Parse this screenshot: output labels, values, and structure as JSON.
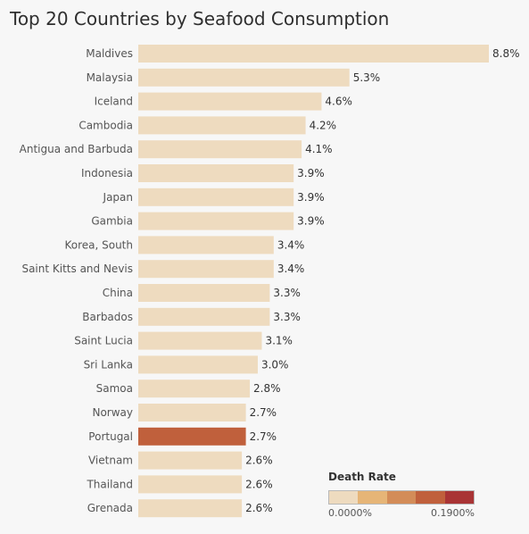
{
  "title": "Top 20 Countries by Seafood Consumption",
  "chart_data": {
    "type": "bar",
    "orientation": "horizontal",
    "title": "Top 20 Countries by Seafood Consumption",
    "xlabel": "",
    "ylabel": "",
    "xlim": [
      0,
      8.8
    ],
    "grid": false,
    "categories": [
      "Maldives",
      "Malaysia",
      "Iceland",
      "Cambodia",
      "Antigua and Barbuda",
      "Indonesia",
      "Japan",
      "Gambia",
      "Korea, South",
      "Saint Kitts and Nevis",
      "China",
      "Barbados",
      "Saint Lucia",
      "Sri Lanka",
      "Samoa",
      "Norway",
      "Portugal",
      "Vietnam",
      "Thailand",
      "Grenada"
    ],
    "values": [
      8.8,
      5.3,
      4.6,
      4.2,
      4.1,
      3.9,
      3.9,
      3.9,
      3.4,
      3.4,
      3.3,
      3.3,
      3.1,
      3.0,
      2.8,
      2.7,
      2.7,
      2.6,
      2.6,
      2.6
    ],
    "value_labels": [
      "8.8%",
      "5.3%",
      "4.6%",
      "4.2%",
      "4.1%",
      "3.9%",
      "3.9%",
      "3.9%",
      "3.4%",
      "3.4%",
      "3.3%",
      "3.3%",
      "3.1%",
      "3.0%",
      "2.8%",
      "2.7%",
      "2.7%",
      "2.6%",
      "2.6%",
      "2.6%"
    ],
    "bar_colors": [
      "#eedbbf",
      "#eedbbf",
      "#eedbbf",
      "#eedbbf",
      "#eedbbf",
      "#eedbbf",
      "#eedbbf",
      "#eedbbf",
      "#eedbbf",
      "#eedbbf",
      "#eedbbf",
      "#eedbbf",
      "#eedbbf",
      "#eedbbf",
      "#eedbbf",
      "#eedbbf",
      "#c0603c",
      "#eedbbf",
      "#eedbbf",
      "#eedbbf"
    ],
    "legend": {
      "title": "Death Rate",
      "min_label": "0.0000%",
      "max_label": "0.1900%",
      "placement": "bottom-right",
      "colors": [
        "#eedbbf",
        "#e6b577",
        "#d38c58",
        "#c0603c",
        "#a93435"
      ]
    }
  }
}
